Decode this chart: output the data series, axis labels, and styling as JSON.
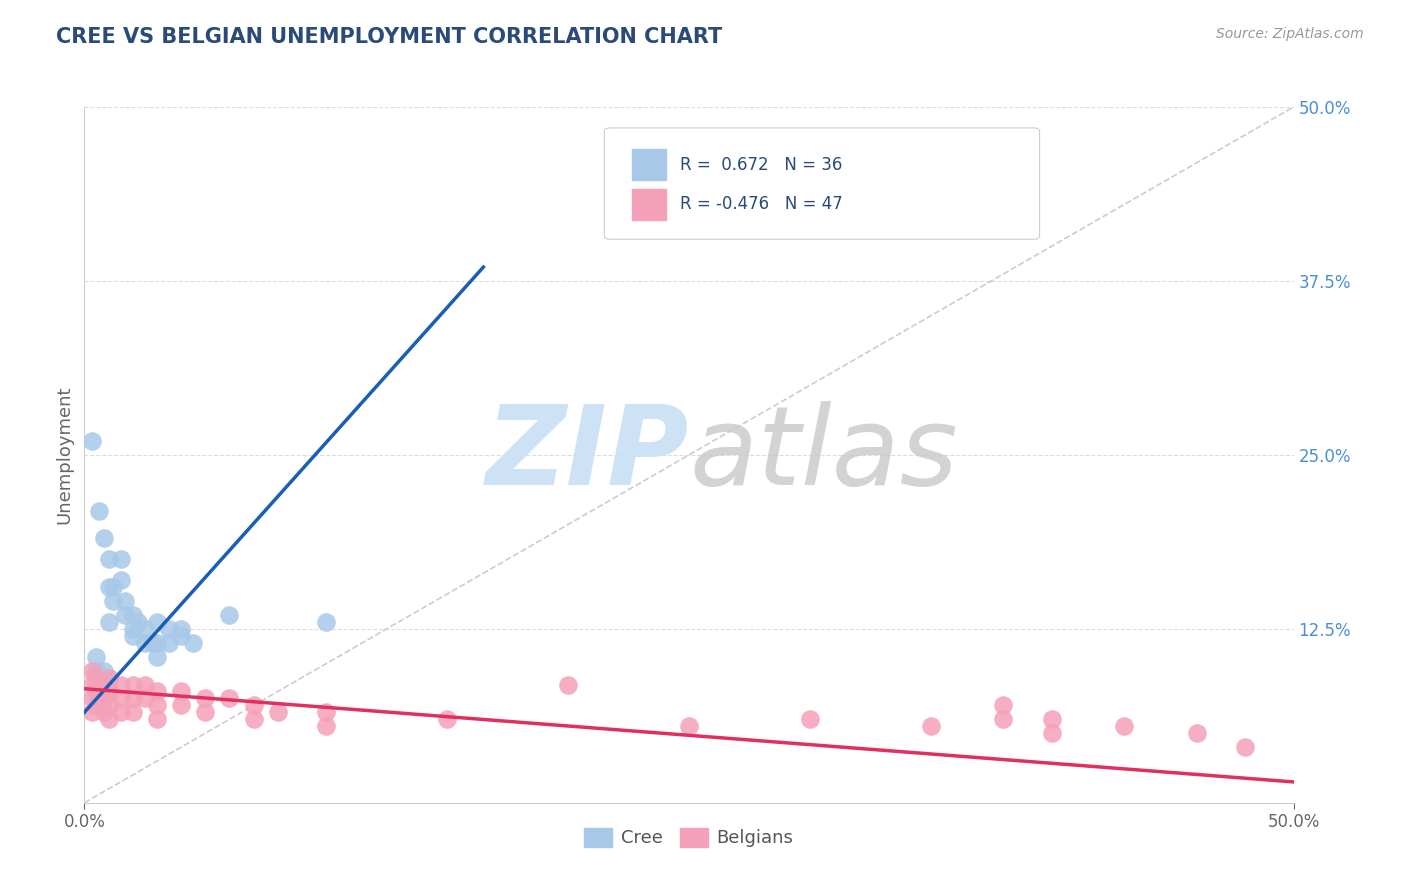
{
  "title": "CREE VS BELGIAN UNEMPLOYMENT CORRELATION CHART",
  "source": "Source: ZipAtlas.com",
  "ylabel": "Unemployment",
  "xlim": [
    0.0,
    0.5
  ],
  "ylim": [
    0.0,
    0.5
  ],
  "gridline_y": [
    0.125,
    0.25,
    0.375,
    0.5
  ],
  "cree_color": "#a8c8e8",
  "belgian_color": "#f4a0b8",
  "cree_line_color": "#1a5fb5",
  "belgian_line_color": "#e03060",
  "diag_color": "#cccccc",
  "background_color": "#ffffff",
  "title_color": "#2a4a7a",
  "source_color": "#999999",
  "right_axis_color": "#4a90d9",
  "cree_scatter": [
    [
      0.003,
      0.26
    ],
    [
      0.006,
      0.21
    ],
    [
      0.008,
      0.19
    ],
    [
      0.01,
      0.175
    ],
    [
      0.01,
      0.155
    ],
    [
      0.01,
      0.13
    ],
    [
      0.012,
      0.155
    ],
    [
      0.012,
      0.145
    ],
    [
      0.015,
      0.175
    ],
    [
      0.015,
      0.16
    ],
    [
      0.017,
      0.145
    ],
    [
      0.017,
      0.135
    ],
    [
      0.02,
      0.135
    ],
    [
      0.02,
      0.125
    ],
    [
      0.02,
      0.12
    ],
    [
      0.022,
      0.13
    ],
    [
      0.025,
      0.125
    ],
    [
      0.025,
      0.115
    ],
    [
      0.028,
      0.115
    ],
    [
      0.03,
      0.13
    ],
    [
      0.03,
      0.115
    ],
    [
      0.03,
      0.105
    ],
    [
      0.035,
      0.125
    ],
    [
      0.035,
      0.115
    ],
    [
      0.04,
      0.125
    ],
    [
      0.04,
      0.12
    ],
    [
      0.045,
      0.115
    ],
    [
      0.005,
      0.105
    ],
    [
      0.005,
      0.095
    ],
    [
      0.005,
      0.085
    ],
    [
      0.008,
      0.095
    ],
    [
      0.008,
      0.085
    ],
    [
      0.01,
      0.09
    ],
    [
      0.01,
      0.08
    ],
    [
      0.06,
      0.135
    ],
    [
      0.1,
      0.13
    ]
  ],
  "belgian_scatter": [
    [
      0.003,
      0.095
    ],
    [
      0.003,
      0.085
    ],
    [
      0.003,
      0.075
    ],
    [
      0.003,
      0.065
    ],
    [
      0.005,
      0.09
    ],
    [
      0.005,
      0.08
    ],
    [
      0.005,
      0.07
    ],
    [
      0.008,
      0.085
    ],
    [
      0.008,
      0.075
    ],
    [
      0.008,
      0.065
    ],
    [
      0.01,
      0.09
    ],
    [
      0.01,
      0.08
    ],
    [
      0.01,
      0.07
    ],
    [
      0.01,
      0.06
    ],
    [
      0.015,
      0.085
    ],
    [
      0.015,
      0.075
    ],
    [
      0.015,
      0.065
    ],
    [
      0.02,
      0.085
    ],
    [
      0.02,
      0.075
    ],
    [
      0.02,
      0.065
    ],
    [
      0.025,
      0.085
    ],
    [
      0.025,
      0.075
    ],
    [
      0.03,
      0.08
    ],
    [
      0.03,
      0.07
    ],
    [
      0.03,
      0.06
    ],
    [
      0.04,
      0.08
    ],
    [
      0.04,
      0.07
    ],
    [
      0.05,
      0.075
    ],
    [
      0.05,
      0.065
    ],
    [
      0.06,
      0.075
    ],
    [
      0.07,
      0.07
    ],
    [
      0.07,
      0.06
    ],
    [
      0.08,
      0.065
    ],
    [
      0.1,
      0.065
    ],
    [
      0.1,
      0.055
    ],
    [
      0.15,
      0.06
    ],
    [
      0.2,
      0.085
    ],
    [
      0.25,
      0.055
    ],
    [
      0.3,
      0.06
    ],
    [
      0.35,
      0.055
    ],
    [
      0.38,
      0.07
    ],
    [
      0.38,
      0.06
    ],
    [
      0.4,
      0.06
    ],
    [
      0.4,
      0.05
    ],
    [
      0.43,
      0.055
    ],
    [
      0.46,
      0.05
    ],
    [
      0.48,
      0.04
    ]
  ],
  "cree_trend_x": [
    0.0,
    0.165
  ],
  "cree_trend_y": [
    0.065,
    0.385
  ],
  "belgian_trend_x": [
    0.0,
    0.5
  ],
  "belgian_trend_y": [
    0.082,
    0.015
  ],
  "diag_line_x": [
    0.0,
    0.5
  ],
  "diag_line_y": [
    0.0,
    0.5
  ]
}
